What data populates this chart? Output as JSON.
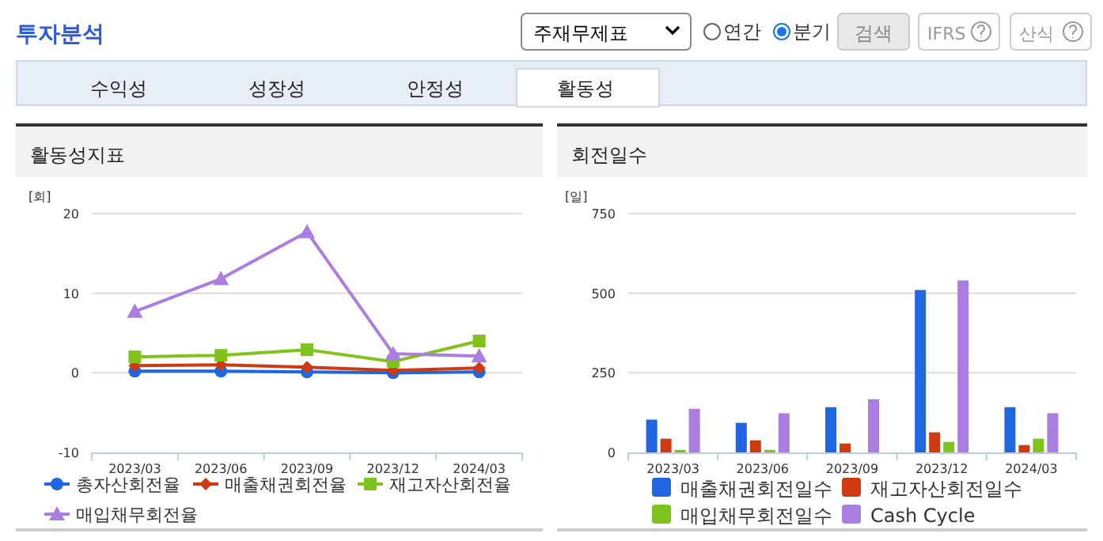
{
  "chart_data": [
    {
      "type": "other",
      "title": "투자분석",
      "annotations": [
        "주재무제표",
        "연간",
        "분기",
        "검색",
        "IFRS",
        "산식",
        "수익성",
        "성장성",
        "안정성",
        "활동성"
      ]
    },
    {
      "type": "line",
      "title": "활동성지표",
      "ylabel": "[회]",
      "categories": [
        "2023/03",
        "2023/06",
        "2023/09",
        "2023/12",
        "2024/03"
      ],
      "ylim": [
        -10,
        20
      ],
      "yticks": [
        -10,
        0,
        10,
        20
      ],
      "grid": "y",
      "legend": "bottom",
      "series": [
        {
          "name": "총자산회전율",
          "color": "#1f66e0",
          "marker": "circle",
          "values": [
            0.2,
            0.2,
            0.1,
            0.0,
            0.1
          ]
        },
        {
          "name": "매출채권회전율",
          "color": "#d03a10",
          "marker": "diamond",
          "values": [
            0.9,
            1.0,
            0.7,
            0.3,
            0.6
          ]
        },
        {
          "name": "재고자산회전율",
          "color": "#7fc31c",
          "marker": "square",
          "values": [
            2.0,
            2.2,
            2.9,
            1.4,
            4.0
          ]
        },
        {
          "name": "매입채무회전율",
          "color": "#a97ee0",
          "marker": "triangle",
          "values": [
            7.7,
            11.8,
            17.7,
            2.4,
            2.1
          ]
        }
      ]
    },
    {
      "type": "bar",
      "title": "회전일수",
      "ylabel": "[일]",
      "categories": [
        "2023/03",
        "2023/06",
        "2023/09",
        "2023/12",
        "2024/03"
      ],
      "ylim": [
        0,
        750
      ],
      "yticks": [
        0,
        250,
        500,
        750
      ],
      "grid": "y",
      "legend": "bottom",
      "series": [
        {
          "name": "매출채권회전일수",
          "color": "#1f66e0",
          "values": [
            103,
            93,
            142,
            510,
            142
          ]
        },
        {
          "name": "재고자산회전일수",
          "color": "#d03a10",
          "values": [
            43,
            38,
            28,
            63,
            23
          ]
        },
        {
          "name": "매입채무회전일수",
          "color": "#7fc31c",
          "values": [
            8,
            8,
            null,
            33,
            43
          ]
        },
        {
          "name": "Cash Cycle",
          "color": "#a97ee0",
          "values": [
            137,
            123,
            167,
            540,
            123
          ]
        }
      ]
    }
  ]
}
